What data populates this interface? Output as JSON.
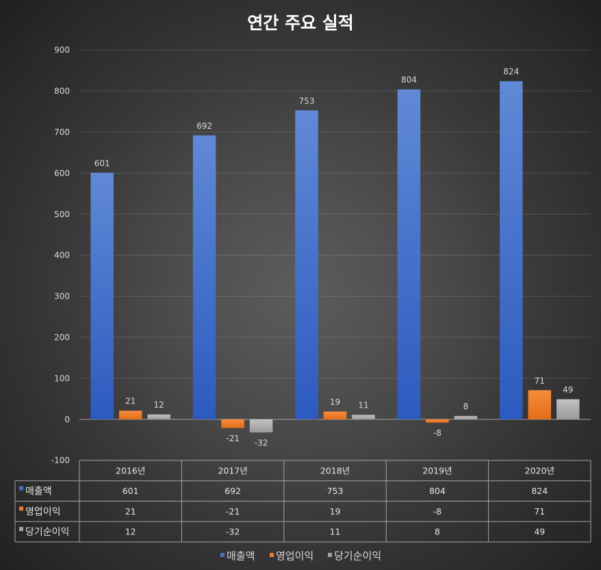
{
  "chart_data": {
    "type": "bar",
    "title": "연간 주요 실적",
    "categories": [
      "2016년",
      "2017년",
      "2018년",
      "2019년",
      "2020년"
    ],
    "series": [
      {
        "name": "매출액",
        "values": [
          601,
          692,
          753,
          804,
          824
        ],
        "color": "#4472c4",
        "color_top": "#6089d6",
        "color_bottom": "#2d5abf"
      },
      {
        "name": "영업이익",
        "values": [
          21,
          -21,
          19,
          -8,
          71
        ],
        "color": "#ed7d31",
        "color_top": "#f78d3e",
        "color_bottom": "#e36d18"
      },
      {
        "name": "당기순이익",
        "values": [
          12,
          -32,
          11,
          8,
          49
        ],
        "color": "#a5a5a5",
        "color_top": "#c2c2c2",
        "color_bottom": "#9a9a9a"
      }
    ],
    "ylim": [
      -100,
      900
    ],
    "yticks": [
      -100,
      0,
      100,
      200,
      300,
      400,
      500,
      600,
      700,
      800,
      900
    ],
    "grid": true,
    "legend": "bottom",
    "data_table": true
  }
}
